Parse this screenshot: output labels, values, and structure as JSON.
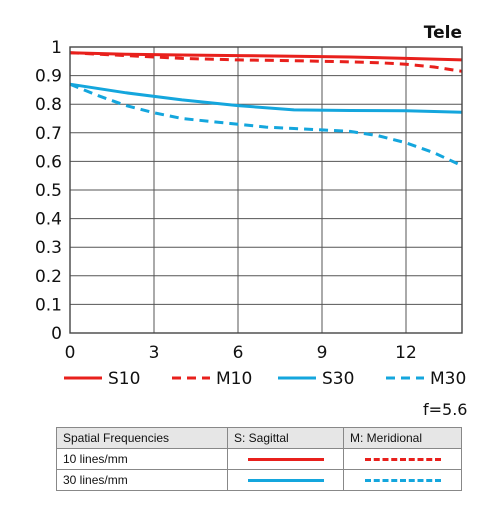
{
  "chart_data": {
    "type": "line",
    "title": "Tele",
    "xlim": [
      0,
      14
    ],
    "ylim": [
      0,
      1
    ],
    "x_ticks": [
      0,
      3,
      6,
      9,
      12
    ],
    "y_ticks": [
      0,
      0.1,
      0.2,
      0.3,
      0.4,
      0.5,
      0.6,
      0.7,
      0.8,
      0.9,
      1
    ],
    "y_tick_labels": [
      "0",
      "0.1",
      "0.2",
      "0.3",
      "0.4",
      "0.5",
      "0.6",
      "0.7",
      "0.8",
      "0.9",
      "1"
    ],
    "grid": true,
    "legend_position": "bottom",
    "series": [
      {
        "name": "S10",
        "color": "#e8201c",
        "dashed": false,
        "x": [
          0,
          2,
          4,
          6,
          8,
          10,
          12,
          14
        ],
        "y": [
          0.98,
          0.975,
          0.972,
          0.97,
          0.968,
          0.965,
          0.96,
          0.955
        ]
      },
      {
        "name": "M10",
        "color": "#e8201c",
        "dashed": true,
        "x": [
          0,
          2,
          4,
          6,
          8,
          10,
          11,
          12,
          13,
          14
        ],
        "y": [
          0.98,
          0.97,
          0.96,
          0.955,
          0.952,
          0.948,
          0.945,
          0.94,
          0.93,
          0.915
        ]
      },
      {
        "name": "S30",
        "color": "#14a6dd",
        "dashed": false,
        "x": [
          0,
          2,
          4,
          6,
          8,
          10,
          12,
          14
        ],
        "y": [
          0.87,
          0.84,
          0.815,
          0.795,
          0.78,
          0.778,
          0.777,
          0.772
        ]
      },
      {
        "name": "M30",
        "color": "#14a6dd",
        "dashed": true,
        "x": [
          0,
          1,
          2,
          3,
          4,
          5,
          6,
          7,
          8,
          9,
          10,
          11,
          12,
          13,
          14
        ],
        "y": [
          0.87,
          0.83,
          0.795,
          0.77,
          0.75,
          0.74,
          0.73,
          0.72,
          0.715,
          0.71,
          0.705,
          0.69,
          0.665,
          0.63,
          0.585
        ]
      }
    ]
  },
  "aperture_label": "f=5.6",
  "key_table": {
    "header": [
      "Spatial Frequencies",
      "S: Sagittal",
      "M: Meridional"
    ],
    "rows": [
      "10 lines/mm",
      "30 lines/mm"
    ]
  }
}
